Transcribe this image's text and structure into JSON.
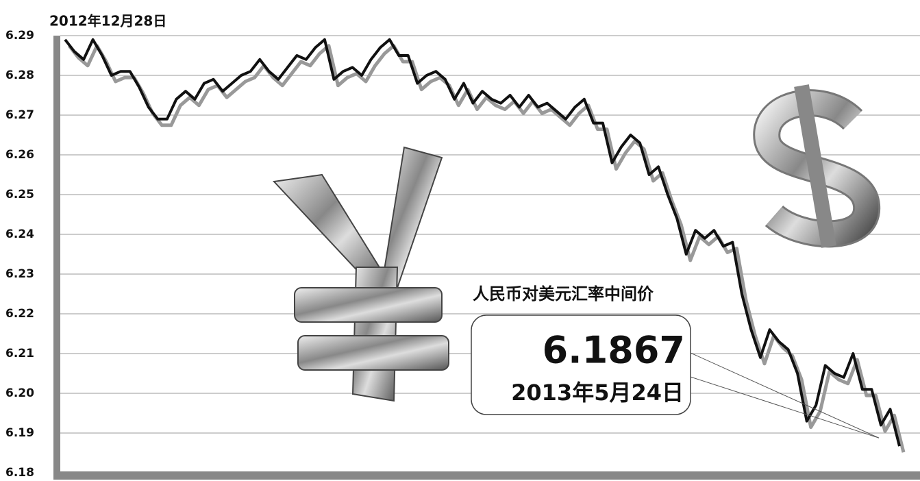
{
  "chart_data": {
    "type": "line",
    "start_label": "2012年12月28日",
    "series": [
      {
        "name": "人民币对美元汇率中间价",
        "color": "#111111",
        "values": [
          6.289,
          6.286,
          6.284,
          6.289,
          6.285,
          6.28,
          6.281,
          6.281,
          6.277,
          6.272,
          6.269,
          6.269,
          6.274,
          6.276,
          6.274,
          6.278,
          6.279,
          6.276,
          6.278,
          6.28,
          6.281,
          6.284,
          6.281,
          6.279,
          6.282,
          6.285,
          6.284,
          6.287,
          6.289,
          6.279,
          6.281,
          6.282,
          6.28,
          6.284,
          6.287,
          6.289,
          6.285,
          6.285,
          6.278,
          6.28,
          6.281,
          6.279,
          6.274,
          6.278,
          6.273,
          6.276,
          6.274,
          6.273,
          6.275,
          6.272,
          6.275,
          6.272,
          6.273,
          6.271,
          6.269,
          6.272,
          6.274,
          6.268,
          6.268,
          6.258,
          6.262,
          6.265,
          6.263,
          6.255,
          6.257,
          6.25,
          6.244,
          6.235,
          6.241,
          6.239,
          6.241,
          6.237,
          6.238,
          6.225,
          6.216,
          6.209,
          6.216,
          6.213,
          6.211,
          6.205,
          6.193,
          6.197,
          6.207,
          6.205,
          6.204,
          6.21,
          6.201,
          6.201,
          6.192,
          6.196,
          6.1867
        ]
      }
    ],
    "end_annotation": {
      "value": 6.1867,
      "date": "2013年5月24日"
    },
    "ylim": [
      6.18,
      6.29
    ],
    "yticks": [
      6.18,
      6.19,
      {
        "value": 6.2,
        "label": "6.20"
      },
      6.21,
      6.22,
      6.23,
      6.24,
      6.25,
      6.26,
      6.27,
      6.28,
      6.29
    ],
    "grid": true
  }
}
